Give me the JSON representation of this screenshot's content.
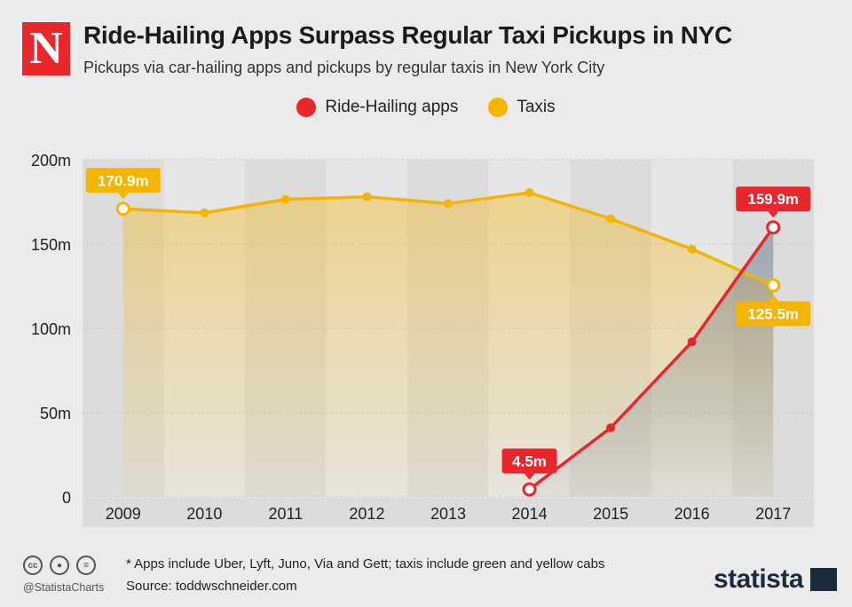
{
  "header": {
    "logo_letter": "N",
    "title": "Ride-Hailing Apps Surpass Regular Taxi Pickups in NYC",
    "subtitle": "Pickups via car-hailing apps and pickups by regular taxis in New York City"
  },
  "colors": {
    "ride_hailing": "#e8262c",
    "taxis": "#f5b400",
    "logo": "#e8262c",
    "background": "#ebebeb"
  },
  "chart_data": {
    "type": "line",
    "categories": [
      "2009",
      "2010",
      "2011",
      "2012",
      "2013",
      "2014",
      "2015",
      "2016",
      "2017"
    ],
    "series": [
      {
        "name": "Ride-Hailing apps",
        "values": [
          null,
          null,
          null,
          null,
          null,
          4.5,
          41,
          92,
          159.9
        ]
      },
      {
        "name": "Taxis",
        "values": [
          170.9,
          168.5,
          176.5,
          178,
          174,
          180.5,
          165,
          147,
          125.5
        ]
      }
    ],
    "data_labels": [
      {
        "series": 0,
        "index": 5,
        "text": "4.5m"
      },
      {
        "series": 0,
        "index": 8,
        "text": "159.9m"
      },
      {
        "series": 1,
        "index": 0,
        "text": "170.9m"
      },
      {
        "series": 1,
        "index": 8,
        "text": "125.5m"
      }
    ],
    "y_ticks": [
      {
        "value": 0,
        "label": "0"
      },
      {
        "value": 50,
        "label": "50m"
      },
      {
        "value": 100,
        "label": "100m"
      },
      {
        "value": 150,
        "label": "150m"
      },
      {
        "value": 200,
        "label": "200m"
      }
    ],
    "ylim": [
      0,
      200
    ],
    "grid": true,
    "legend_position": "top-center"
  },
  "footer": {
    "cc_icons": [
      "cc-icon",
      "by-icon",
      "nd-icon"
    ],
    "handle": "@StatistaCharts",
    "note": "* Apps include Uber, Lyft, Juno, Via and Gett; taxis include green and yellow cabs",
    "source": "Source: toddwschneider.com",
    "brand": "statista"
  }
}
